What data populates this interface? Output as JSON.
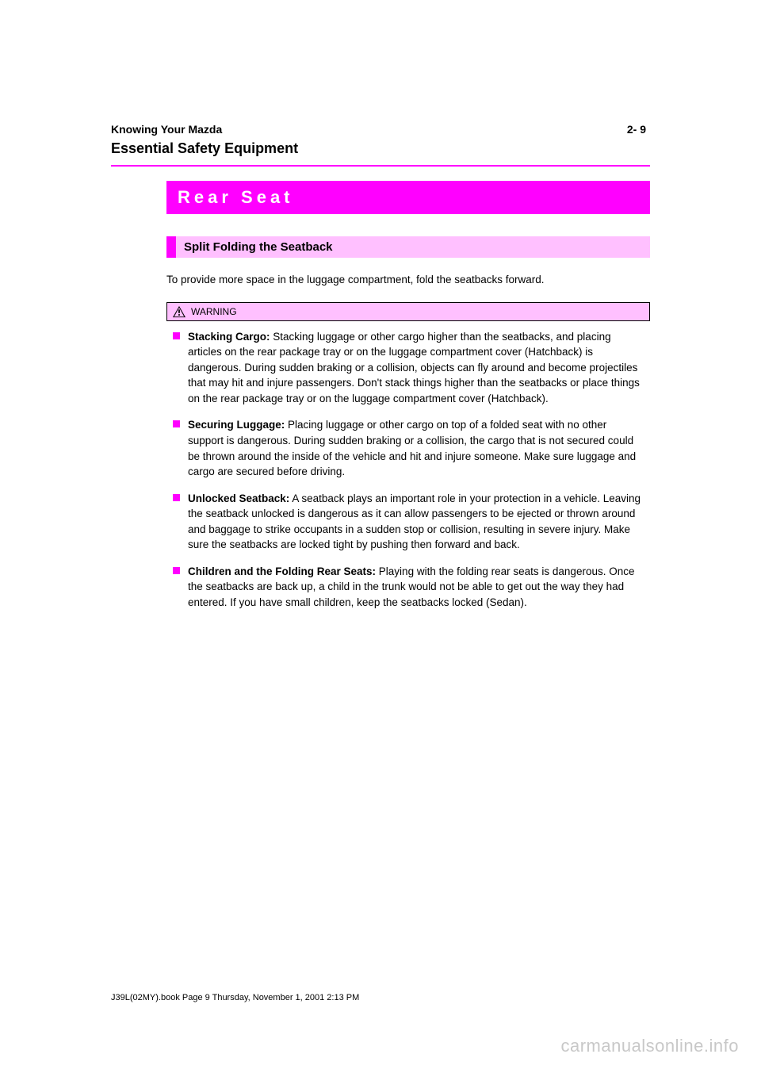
{
  "colors": {
    "accent": "#ff00ff",
    "accent_light": "#ffc0ff",
    "text": "#000000",
    "page_bg": "#ffffff",
    "watermark": "#c8c8c8"
  },
  "header": {
    "breadcrumb": "Knowing Your Mazda",
    "chapter": "Essential Safety Equipment",
    "page_number": "2- 9"
  },
  "main_title": "Rear Seat",
  "sub_title": "Split Folding the Seatback",
  "intro": "To  provide more space in the luggage compartment, fold the seatbacks forward.",
  "warning": {
    "label": "WARNING",
    "icon": "warning-triangle-icon",
    "items": [
      {
        "heading": "Stacking Cargo:",
        "body": "Stacking luggage or other cargo higher than the seatbacks, and placing articles on the rear package tray or on the luggage compartment cover (Hatchback) is dangerous. During sudden braking or a collision, objects can fly around and become projectiles that may hit and injure passengers. Don't stack things higher than the seatbacks or place things on the rear package tray or on the luggage compartment cover (Hatchback)."
      },
      {
        "heading": "Securing Luggage:",
        "body": "Placing luggage or other cargo on top of a folded seat with no other support is dangerous. During sudden braking or a collision, the cargo that is not secured could be thrown around the inside of the vehicle and hit and injure someone. Make sure luggage and cargo are secured before driving."
      },
      {
        "heading": "Unlocked Seatback:",
        "body": "A seatback plays an important role in your protection in a vehicle. Leaving the seatback unlocked is dangerous as it can allow passengers to be ejected or thrown around and baggage to strike occupants in a sudden stop or collision, resulting in severe injury. Make sure the seatbacks are locked tight by pushing then forward and back."
      },
      {
        "heading": "Children and the Folding Rear Seats:",
        "body": "Playing with the folding rear seats is dangerous. Once the seatbacks are back up, a child in the trunk would not be able to get out the way they had entered. If you have small children, keep the seatbacks locked (Sedan)."
      }
    ]
  },
  "footer": {
    "doc_id": "J39L(02MY).book  Page 9  Thursday, November 1, 2001  2:13 PM"
  },
  "watermark": "carmanualsonline.info"
}
